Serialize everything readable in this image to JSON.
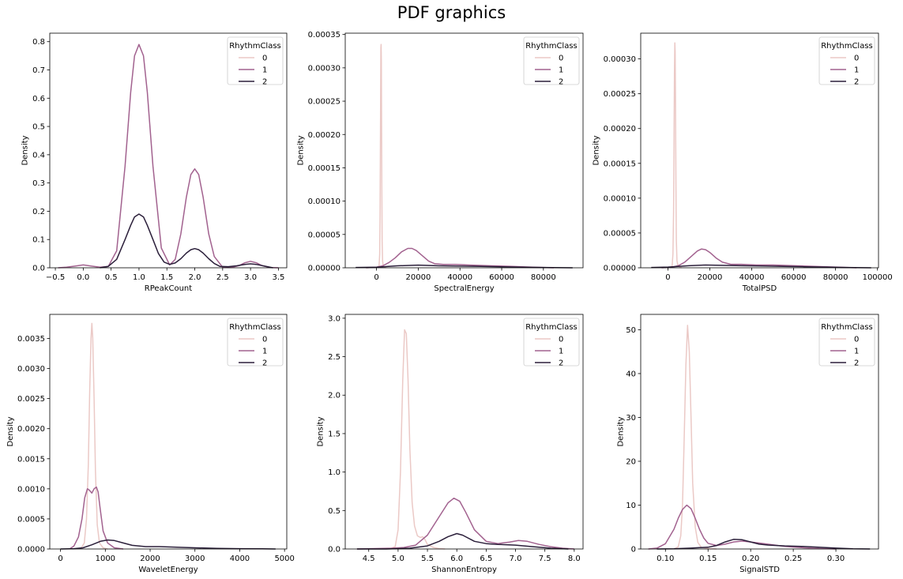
{
  "title": "PDF graphics",
  "colors": {
    "class0": "#ebc9c6",
    "class1": "#a2628f",
    "class2": "#2b1f3a"
  },
  "chart_data": [
    {
      "type": "line",
      "xlabel": "RPeakCount",
      "ylabel": "Density",
      "xlim": [
        -0.6,
        3.65
      ],
      "ylim": [
        0,
        0.83
      ],
      "xticks": [
        -0.5,
        0,
        0.5,
        1,
        1.5,
        2,
        2.5,
        3,
        3.5
      ],
      "xtick_labels": [
        "−0.5",
        "0.0",
        "0.5",
        "1.0",
        "1.5",
        "2.0",
        "2.5",
        "3.0",
        "3.5"
      ],
      "yticks": [
        0,
        0.1,
        0.2,
        0.3,
        0.4,
        0.5,
        0.6,
        0.7,
        0.8
      ],
      "ytick_labels": [
        "0.0",
        "0.1",
        "0.2",
        "0.3",
        "0.4",
        "0.5",
        "0.6",
        "0.7",
        "0.8"
      ],
      "legend": {
        "title": "RhythmClass",
        "loc": "upper right"
      },
      "series": [
        {
          "name": "0",
          "color": "#ebc9c6",
          "x": [],
          "y": []
        },
        {
          "name": "1",
          "color": "#a2628f",
          "x": [
            -0.45,
            -0.3,
            -0.15,
            0,
            0.15,
            0.3,
            0.45,
            0.6,
            0.75,
            0.85,
            0.92,
            1,
            1.08,
            1.15,
            1.25,
            1.4,
            1.55,
            1.65,
            1.75,
            1.85,
            1.93,
            2,
            2.07,
            2.15,
            2.25,
            2.35,
            2.5,
            2.65,
            2.8,
            2.9,
            3,
            3.1,
            3.2,
            3.35,
            3.5
          ],
          "y": [
            0.0,
            0.002,
            0.006,
            0.01,
            0.006,
            0.002,
            0.005,
            0.06,
            0.36,
            0.62,
            0.75,
            0.79,
            0.75,
            0.62,
            0.36,
            0.07,
            0.01,
            0.03,
            0.12,
            0.25,
            0.33,
            0.35,
            0.33,
            0.25,
            0.12,
            0.04,
            0.002,
            0.001,
            0.008,
            0.018,
            0.023,
            0.018,
            0.008,
            0.001,
            0.0
          ]
        },
        {
          "name": "2",
          "color": "#2b1f3a",
          "x": [
            0.3,
            0.45,
            0.6,
            0.75,
            0.85,
            0.92,
            1,
            1.08,
            1.15,
            1.25,
            1.35,
            1.45,
            1.55,
            1.65,
            1.75,
            1.85,
            1.93,
            2,
            2.07,
            2.15,
            2.25,
            2.35,
            2.45,
            2.6,
            2.75,
            2.9,
            3,
            3.1,
            3.25,
            3.4
          ],
          "y": [
            0.0,
            0.005,
            0.03,
            0.1,
            0.15,
            0.18,
            0.19,
            0.18,
            0.15,
            0.1,
            0.05,
            0.02,
            0.012,
            0.017,
            0.032,
            0.052,
            0.064,
            0.068,
            0.064,
            0.052,
            0.032,
            0.015,
            0.005,
            0.004,
            0.007,
            0.012,
            0.014,
            0.012,
            0.006,
            0.0
          ]
        }
      ]
    },
    {
      "type": "line",
      "xlabel": "SpectralEnergy",
      "ylabel": "Density",
      "xlim": [
        -15000,
        99000
      ],
      "ylim": [
        0,
        0.000352
      ],
      "xticks": [
        0,
        20000,
        40000,
        60000,
        80000
      ],
      "xtick_labels": [
        "0",
        "20000",
        "40000",
        "60000",
        "80000"
      ],
      "yticks": [
        0,
        5e-05,
        0.0001,
        0.00015,
        0.0002,
        0.00025,
        0.0003,
        0.00035
      ],
      "ytick_labels": [
        "0.00000",
        "0.00005",
        "0.00010",
        "0.00015",
        "0.00020",
        "0.00025",
        "0.00030",
        "0.00035"
      ],
      "legend": {
        "title": "RhythmClass",
        "loc": "upper right"
      },
      "series": [
        {
          "name": "0",
          "color": "#ebc9c6",
          "x": [
            800,
            1200,
            1500,
            1700,
            1850,
            2000,
            2100,
            2200,
            2300,
            2400,
            2550,
            2700,
            2900,
            3200,
            3800,
            4500
          ],
          "y": [
            0.0,
            3e-06,
            2e-05,
            8e-05,
            0.00018,
            0.00028,
            0.00033,
            0.000335,
            0.00031,
            0.00024,
            0.00012,
            4e-05,
            1e-05,
            3e-06,
            1e-06,
            0.0
          ]
        },
        {
          "name": "1",
          "color": "#a2628f",
          "x": [
            -5000,
            0,
            3000,
            6000,
            9000,
            12000,
            15000,
            17000,
            19000,
            22000,
            25000,
            28000,
            32000,
            38000,
            45000,
            55000,
            65000,
            75000,
            85000
          ],
          "y": [
            0.0,
            1e-06,
            3e-06,
            8e-06,
            1.5e-05,
            2.4e-05,
            2.9e-05,
            2.9e-05,
            2.6e-05,
            1.8e-05,
            1e-05,
            6e-06,
            5e-06,
            5e-06,
            4e-06,
            3e-06,
            2e-06,
            1e-06,
            0.0
          ]
        },
        {
          "name": "2",
          "color": "#2b1f3a",
          "x": [
            -10000,
            0,
            10000,
            20000,
            30000,
            40000,
            50000,
            60000,
            70000,
            80000,
            94000
          ],
          "y": [
            5e-07,
            1e-06,
            3e-06,
            4e-06,
            3e-06,
            2.5e-06,
            2e-06,
            1.5e-06,
            1e-06,
            5e-07,
            0.0
          ]
        }
      ]
    },
    {
      "type": "line",
      "xlabel": "TotalPSD",
      "ylabel": "Density",
      "xlim": [
        -13000,
        100500
      ],
      "ylim": [
        0,
        0.000337
      ],
      "xticks": [
        0,
        20000,
        40000,
        60000,
        80000,
        100000
      ],
      "xtick_labels": [
        "0",
        "20000",
        "40000",
        "60000",
        "80000",
        "100000"
      ],
      "yticks": [
        0,
        5e-05,
        0.0001,
        0.00015,
        0.0002,
        0.00025,
        0.0003
      ],
      "ytick_labels": [
        "0.00000",
        "0.00005",
        "0.00010",
        "0.00015",
        "0.00020",
        "0.00025",
        "0.00030"
      ],
      "legend": {
        "title": "RhythmClass",
        "loc": "upper right"
      },
      "series": [
        {
          "name": "0",
          "color": "#ebc9c6",
          "x": [
            1500,
            2000,
            2400,
            2700,
            2900,
            3100,
            3300,
            3450,
            3600,
            3800,
            4000,
            4300,
            4800,
            5500,
            6500
          ],
          "y": [
            0.0,
            3e-06,
            2e-05,
            8e-05,
            0.00018,
            0.00028,
            0.000323,
            0.00031,
            0.00024,
            0.00012,
            4e-05,
            1e-05,
            3e-06,
            1e-06,
            0.0
          ]
        },
        {
          "name": "1",
          "color": "#a2628f",
          "x": [
            -3000,
            2000,
            5000,
            8000,
            11000,
            14000,
            16000,
            18000,
            20000,
            23000,
            26000,
            30000,
            35000,
            42000,
            50000,
            60000,
            70000,
            80000,
            90000
          ],
          "y": [
            0.0,
            1e-06,
            3e-06,
            8e-06,
            1.6e-05,
            2.4e-05,
            2.7e-05,
            2.6e-05,
            2.2e-05,
            1.4e-05,
            8e-06,
            5e-06,
            5e-06,
            4e-06,
            4e-06,
            3e-06,
            2e-06,
            1e-06,
            0.0
          ]
        },
        {
          "name": "2",
          "color": "#2b1f3a",
          "x": [
            -8000,
            0,
            10000,
            18000,
            25000,
            35000,
            45000,
            55000,
            65000,
            75000,
            85000,
            97000
          ],
          "y": [
            5e-07,
            1e-06,
            3e-06,
            4e-06,
            3.5e-06,
            3e-06,
            2.5e-06,
            2e-06,
            1.5e-06,
            1e-06,
            5e-07,
            0.0
          ]
        }
      ]
    },
    {
      "type": "line",
      "xlabel": "WaveletEnergy",
      "ylabel": "Density",
      "xlim": [
        -240,
        5050
      ],
      "ylim": [
        0,
        0.0039
      ],
      "xticks": [
        0,
        1000,
        2000,
        3000,
        4000,
        5000
      ],
      "xtick_labels": [
        "0",
        "1000",
        "2000",
        "3000",
        "4000",
        "5000"
      ],
      "yticks": [
        0,
        0.0005,
        0.001,
        0.0015,
        0.002,
        0.0025,
        0.003,
        0.0035
      ],
      "ytick_labels": [
        "0.0000",
        "0.0005",
        "0.0010",
        "0.0015",
        "0.0020",
        "0.0025",
        "0.0030",
        "0.0035"
      ],
      "legend": {
        "title": "RhythmClass",
        "loc": "upper right"
      },
      "series": [
        {
          "name": "0",
          "color": "#ebc9c6",
          "x": [
            450,
            530,
            580,
            620,
            650,
            680,
            700,
            720,
            750,
            780,
            820,
            870,
            950,
            1050
          ],
          "y": [
            0.0,
            0.0001,
            0.0005,
            0.0014,
            0.0026,
            0.0035,
            0.00375,
            0.0035,
            0.0025,
            0.0013,
            0.0004,
            0.0001,
            2e-05,
            0.0
          ]
        },
        {
          "name": "1",
          "color": "#a2628f",
          "x": [
            200,
            300,
            400,
            480,
            540,
            600,
            640,
            700,
            750,
            800,
            840,
            880,
            950,
            1050,
            1200,
            1400
          ],
          "y": [
            0.0,
            5e-05,
            0.0002,
            0.0005,
            0.00085,
            0.001,
            0.00098,
            0.00093,
            0.001,
            0.00103,
            0.00095,
            0.0007,
            0.0003,
            0.0001,
            2e-05,
            0.0
          ]
        },
        {
          "name": "2",
          "color": "#2b1f3a",
          "x": [
            0,
            300,
            500,
            700,
            900,
            1050,
            1200,
            1400,
            1600,
            1900,
            2200,
            2600,
            3000,
            3500,
            4000,
            4500,
            4800
          ],
          "y": [
            0.0,
            5e-06,
            2e-05,
            7e-05,
            0.00013,
            0.00015,
            0.00014,
            0.0001,
            6e-05,
            4e-05,
            4e-05,
            3e-05,
            2e-05,
            1e-05,
            5e-06,
            2e-06,
            0.0
          ]
        }
      ]
    },
    {
      "type": "line",
      "xlabel": "ShannonEntropy",
      "ylabel": "Density",
      "xlim": [
        4.1,
        8.15
      ],
      "ylim": [
        0,
        3.05
      ],
      "xticks": [
        4.5,
        5,
        5.5,
        6,
        6.5,
        7,
        7.5,
        8
      ],
      "xtick_labels": [
        "4.5",
        "5.0",
        "5.5",
        "6.0",
        "6.5",
        "7.0",
        "7.5",
        "8.0"
      ],
      "yticks": [
        0,
        0.5,
        1,
        1.5,
        2,
        2.5,
        3
      ],
      "ytick_labels": [
        "0.0",
        "0.5",
        "1.0",
        "1.5",
        "2.0",
        "2.5",
        "3.0"
      ],
      "legend": {
        "title": "RhythmClass",
        "loc": "upper right"
      },
      "series": [
        {
          "name": "0",
          "color": "#ebc9c6",
          "x": [
            4.85,
            4.95,
            5.0,
            5.04,
            5.08,
            5.11,
            5.14,
            5.17,
            5.2,
            5.24,
            5.28,
            5.33,
            5.38,
            5.42,
            5.46,
            5.5,
            5.6,
            5.7,
            5.8
          ],
          "y": [
            0.0,
            0.03,
            0.25,
            1.0,
            2.2,
            2.85,
            2.8,
            2.2,
            1.3,
            0.6,
            0.3,
            0.17,
            0.15,
            0.16,
            0.12,
            0.06,
            0.02,
            0.005,
            0.0
          ]
        },
        {
          "name": "1",
          "color": "#a2628f",
          "x": [
            4.3,
            4.6,
            4.9,
            5.1,
            5.3,
            5.5,
            5.7,
            5.85,
            5.95,
            6.05,
            6.15,
            6.3,
            6.5,
            6.7,
            6.9,
            7.05,
            7.2,
            7.4,
            7.6,
            7.8,
            8.0
          ],
          "y": [
            0.0,
            0.005,
            0.01,
            0.02,
            0.05,
            0.18,
            0.42,
            0.6,
            0.66,
            0.62,
            0.48,
            0.25,
            0.1,
            0.07,
            0.09,
            0.11,
            0.1,
            0.06,
            0.03,
            0.01,
            0.0
          ]
        },
        {
          "name": "2",
          "color": "#2b1f3a",
          "x": [
            4.3,
            4.8,
            5.2,
            5.5,
            5.7,
            5.85,
            6.0,
            6.1,
            6.3,
            6.5,
            6.7,
            7.0,
            7.3,
            7.6,
            7.9
          ],
          "y": [
            0.0,
            0.0,
            0.01,
            0.04,
            0.1,
            0.16,
            0.2,
            0.18,
            0.1,
            0.07,
            0.06,
            0.05,
            0.03,
            0.01,
            0.0
          ]
        }
      ]
    },
    {
      "type": "line",
      "xlabel": "SignalSTD",
      "ylabel": "Density",
      "xlim": [
        0.071,
        0.35
      ],
      "ylim": [
        0,
        53.5
      ],
      "xticks": [
        0.1,
        0.15,
        0.2,
        0.25,
        0.3
      ],
      "xtick_labels": [
        "0.10",
        "0.15",
        "0.20",
        "0.25",
        "0.30"
      ],
      "yticks": [
        0,
        10,
        20,
        30,
        40,
        50
      ],
      "ytick_labels": [
        "0",
        "10",
        "20",
        "30",
        "40",
        "50"
      ],
      "legend": {
        "title": "RhythmClass",
        "loc": "upper right"
      },
      "series": [
        {
          "name": "0",
          "color": "#ebc9c6",
          "x": [
            0.11,
            0.115,
            0.118,
            0.12,
            0.122,
            0.124,
            0.126,
            0.128,
            0.13,
            0.132,
            0.135,
            0.138,
            0.142,
            0.15,
            0.16
          ],
          "y": [
            0.0,
            0.5,
            3,
            10,
            25,
            42,
            51,
            45,
            30,
            15,
            5,
            1.5,
            0.4,
            0.1,
            0.0
          ]
        },
        {
          "name": "1",
          "color": "#a2628f",
          "x": [
            0.08,
            0.09,
            0.1,
            0.11,
            0.115,
            0.12,
            0.125,
            0.13,
            0.135,
            0.14,
            0.145,
            0.15,
            0.16,
            0.17,
            0.18,
            0.19,
            0.2,
            0.22,
            0.24,
            0.26,
            0.28,
            0.3
          ],
          "y": [
            0.0,
            0.2,
            1.2,
            4.5,
            7,
            9,
            10,
            9.2,
            7,
            4.5,
            2.5,
            1.3,
            0.8,
            1.1,
            1.6,
            1.8,
            1.6,
            1.1,
            0.6,
            0.3,
            0.1,
            0.0
          ]
        },
        {
          "name": "2",
          "color": "#2b1f3a",
          "x": [
            0.09,
            0.11,
            0.13,
            0.14,
            0.15,
            0.16,
            0.17,
            0.18,
            0.19,
            0.2,
            0.21,
            0.22,
            0.24,
            0.26,
            0.28,
            0.3,
            0.32,
            0.34
          ],
          "y": [
            0.0,
            0.05,
            0.2,
            0.3,
            0.4,
            0.8,
            1.6,
            2.2,
            2.1,
            1.6,
            1.1,
            0.9,
            0.7,
            0.6,
            0.4,
            0.2,
            0.05,
            0.0
          ]
        }
      ]
    }
  ]
}
